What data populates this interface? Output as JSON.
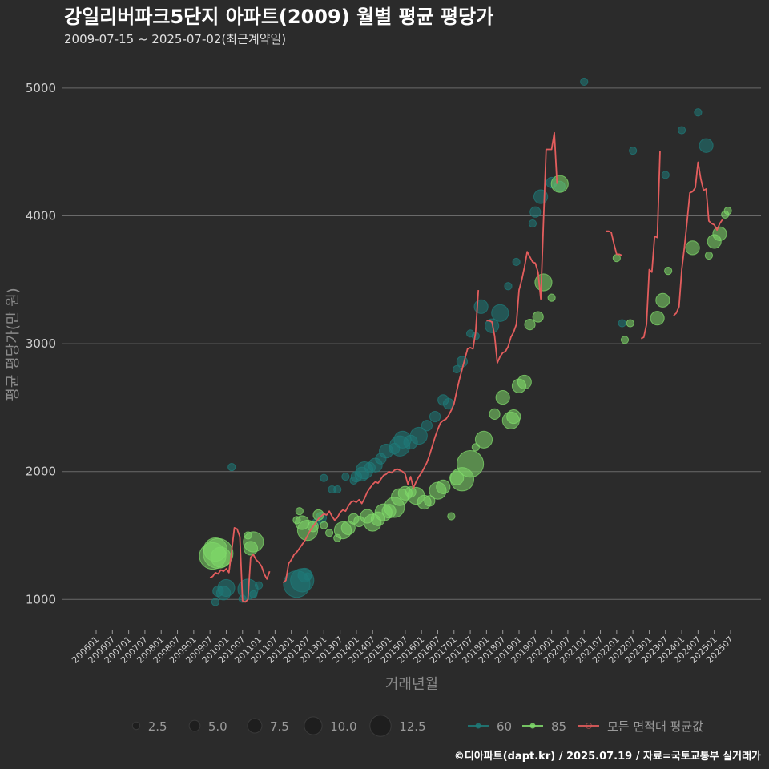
{
  "chart_data": {
    "type": "scatter",
    "title": "강일리버파크5단지 아파트(2009) 월별 평균 평당가",
    "subtitle": "2009-07-15 ~ 2025-07-02(최근계약일)",
    "xlabel": "거래년월",
    "ylabel": "평균 평당가(만 원)",
    "ylim": [
      770,
      5250
    ],
    "yticks": [
      1000,
      2000,
      3000,
      4000,
      5000
    ],
    "xticks": [
      "200601",
      "200607",
      "200701",
      "200707",
      "200801",
      "200807",
      "200901",
      "200907",
      "201001",
      "201007",
      "201101",
      "201107",
      "201201",
      "201207",
      "201301",
      "201307",
      "201401",
      "201407",
      "201501",
      "201507",
      "201601",
      "201607",
      "201701",
      "201707",
      "201801",
      "201807",
      "201901",
      "201907",
      "202001",
      "202007",
      "202101",
      "202107",
      "202201",
      "202207",
      "202301",
      "202307",
      "202401",
      "202407",
      "202501",
      "202507"
    ],
    "xrange_months": [
      "2006-01",
      "2025-07"
    ],
    "colors": {
      "s60": "#1f7a78",
      "s85": "#7fd86a",
      "avg": "#e35d5d",
      "grid": "#6a6a6a"
    },
    "size_legend": {
      "values": [
        "2.5",
        "5.0",
        "7.5",
        "10.0",
        "12.5"
      ],
      "numeric": [
        2.5,
        5.0,
        7.5,
        10.0,
        12.5
      ]
    },
    "series_legend": [
      {
        "name": "60",
        "key": "s60"
      },
      {
        "name": "85",
        "key": "s85"
      },
      {
        "name": "모든 면적대 평균값",
        "key": "avg"
      }
    ],
    "points_60": [
      [
        "2009-09",
        980,
        1
      ],
      [
        "2009-10",
        1065,
        2
      ],
      [
        "2009-12",
        1050,
        3
      ],
      [
        "2010-01",
        1090,
        4
      ],
      [
        "2010-03",
        2035,
        1
      ],
      [
        "2010-07",
        1005,
        1
      ],
      [
        "2010-09",
        1080,
        5
      ],
      [
        "2010-11",
        1040,
        1
      ],
      [
        "2011-01",
        1110,
        1
      ],
      [
        "2012-03",
        1120,
        7
      ],
      [
        "2012-05",
        1150,
        6
      ],
      [
        "2012-06",
        1190,
        3
      ],
      [
        "2012-07",
        1180,
        1
      ],
      [
        "2012-10",
        1600,
        1
      ],
      [
        "2012-12",
        1640,
        2
      ],
      [
        "2013-01",
        1950,
        1
      ],
      [
        "2013-04",
        1860,
        1
      ],
      [
        "2013-06",
        1860,
        1
      ],
      [
        "2013-09",
        1960,
        1
      ],
      [
        "2013-12",
        1930,
        1
      ],
      [
        "2014-01",
        1960,
        2
      ],
      [
        "2014-03",
        1980,
        3
      ],
      [
        "2014-04",
        2010,
        4
      ],
      [
        "2014-06",
        2030,
        2
      ],
      [
        "2014-08",
        2050,
        3
      ],
      [
        "2014-10",
        2100,
        2
      ],
      [
        "2014-12",
        2160,
        3
      ],
      [
        "2015-03",
        2180,
        2
      ],
      [
        "2015-05",
        2200,
        5
      ],
      [
        "2015-06",
        2250,
        4
      ],
      [
        "2015-09",
        2230,
        3
      ],
      [
        "2015-12",
        2280,
        4
      ],
      [
        "2016-03",
        2360,
        2
      ],
      [
        "2016-06",
        2430,
        2
      ],
      [
        "2016-09",
        2560,
        2
      ],
      [
        "2016-11",
        2530,
        2
      ],
      [
        "2017-02",
        2800,
        1
      ],
      [
        "2017-04",
        2860,
        2
      ],
      [
        "2017-07",
        3080,
        1
      ],
      [
        "2017-09",
        3060,
        1
      ],
      [
        "2017-11",
        3290,
        3
      ],
      [
        "2018-03",
        3140,
        3
      ],
      [
        "2018-06",
        3240,
        4
      ],
      [
        "2018-09",
        3450,
        1
      ],
      [
        "2018-12",
        3640,
        1
      ],
      [
        "2019-06",
        3940,
        1
      ],
      [
        "2019-07",
        4030,
        2
      ],
      [
        "2019-09",
        4150,
        3
      ],
      [
        "2020-01",
        4260,
        2
      ],
      [
        "2020-04",
        4230,
        2
      ],
      [
        "2021-01",
        5050,
        1
      ],
      [
        "2022-03",
        3160,
        1
      ],
      [
        "2022-07",
        4510,
        1
      ],
      [
        "2023-07",
        4320,
        1
      ],
      [
        "2024-01",
        4670,
        1
      ],
      [
        "2024-07",
        4810,
        1
      ],
      [
        "2024-10",
        4550,
        3
      ]
    ],
    "points_85": [
      [
        "2009-08",
        1340,
        7
      ],
      [
        "2009-09",
        1390,
        6
      ],
      [
        "2009-10",
        1360,
        8
      ],
      [
        "2009-11",
        1330,
        5
      ],
      [
        "2010-10",
        1400,
        3
      ],
      [
        "2010-11",
        1450,
        5
      ],
      [
        "2010-09",
        1500,
        1
      ],
      [
        "2012-03",
        1620,
        1
      ],
      [
        "2012-04",
        1690,
        1
      ],
      [
        "2012-05",
        1600,
        3
      ],
      [
        "2012-07",
        1540,
        5
      ],
      [
        "2012-09",
        1570,
        2
      ],
      [
        "2012-11",
        1660,
        2
      ],
      [
        "2013-01",
        1580,
        1
      ],
      [
        "2013-03",
        1520,
        1
      ],
      [
        "2013-06",
        1480,
        1
      ],
      [
        "2013-08",
        1540,
        4
      ],
      [
        "2013-10",
        1560,
        3
      ],
      [
        "2013-12",
        1630,
        2
      ],
      [
        "2014-02",
        1610,
        2
      ],
      [
        "2014-05",
        1650,
        3
      ],
      [
        "2014-07",
        1600,
        4
      ],
      [
        "2014-09",
        1630,
        3
      ],
      [
        "2014-11",
        1680,
        4
      ],
      [
        "2015-01",
        1690,
        3
      ],
      [
        "2015-03",
        1720,
        5
      ],
      [
        "2015-05",
        1800,
        4
      ],
      [
        "2015-07",
        1830,
        3
      ],
      [
        "2015-09",
        1840,
        2
      ],
      [
        "2015-11",
        1810,
        4
      ],
      [
        "2016-02",
        1760,
        3
      ],
      [
        "2016-04",
        1770,
        2
      ],
      [
        "2016-07",
        1850,
        4
      ],
      [
        "2016-09",
        1880,
        3
      ],
      [
        "2016-12",
        1650,
        1
      ],
      [
        "2017-02",
        1950,
        3
      ],
      [
        "2017-04",
        1940,
        6
      ],
      [
        "2017-07",
        2060,
        7
      ],
      [
        "2017-09",
        2190,
        1
      ],
      [
        "2017-12",
        2250,
        4
      ],
      [
        "2018-04",
        2450,
        2
      ],
      [
        "2018-07",
        2580,
        3
      ],
      [
        "2018-10",
        2400,
        4
      ],
      [
        "2018-11",
        2430,
        3
      ],
      [
        "2019-01",
        2670,
        3
      ],
      [
        "2019-03",
        2700,
        3
      ],
      [
        "2019-05",
        3150,
        2
      ],
      [
        "2019-08",
        3210,
        2
      ],
      [
        "2019-10",
        3480,
        4
      ],
      [
        "2020-01",
        3360,
        1
      ],
      [
        "2020-04",
        4250,
        4
      ],
      [
        "2022-01",
        3670,
        1
      ],
      [
        "2022-04",
        3030,
        1
      ],
      [
        "2022-06",
        3160,
        1
      ],
      [
        "2023-04",
        3200,
        3
      ],
      [
        "2023-06",
        3340,
        3
      ],
      [
        "2023-08",
        3570,
        1
      ],
      [
        "2024-05",
        3750,
        3
      ],
      [
        "2024-11",
        3690,
        1
      ],
      [
        "2025-01",
        3800,
        3
      ],
      [
        "2025-03",
        3860,
        3
      ],
      [
        "2025-05",
        4010,
        1
      ],
      [
        "2025-06",
        4040,
        1
      ]
    ],
    "avg_segments": [
      [
        [
          "2009-07",
          1170
        ],
        [
          "2009-08",
          1180
        ],
        [
          "2009-09",
          1210
        ],
        [
          "2009-10",
          1200
        ],
        [
          "2009-11",
          1230
        ],
        [
          "2009-12",
          1220
        ],
        [
          "2010-01",
          1240
        ],
        [
          "2010-02",
          1210
        ],
        [
          "2010-03",
          1380
        ],
        [
          "2010-04",
          1560
        ],
        [
          "2010-05",
          1550
        ],
        [
          "2010-06",
          1490
        ],
        [
          "2010-07",
          990
        ],
        [
          "2010-08",
          980
        ],
        [
          "2010-09",
          1000
        ],
        [
          "2010-10",
          1330
        ],
        [
          "2010-11",
          1350
        ],
        [
          "2010-12",
          1310
        ],
        [
          "2011-01",
          1290
        ],
        [
          "2011-02",
          1260
        ],
        [
          "2011-03",
          1200
        ],
        [
          "2011-04",
          1160
        ],
        [
          "2011-05",
          1220
        ]
      ],
      [
        [
          "2011-10",
          1130
        ],
        [
          "2011-11",
          1150
        ],
        [
          "2011-12",
          1280
        ],
        [
          "2012-01",
          1310
        ],
        [
          "2012-02",
          1350
        ],
        [
          "2012-03",
          1370
        ],
        [
          "2012-04",
          1400
        ],
        [
          "2012-05",
          1430
        ],
        [
          "2012-06",
          1460
        ],
        [
          "2012-07",
          1500
        ],
        [
          "2012-08",
          1540
        ],
        [
          "2012-09",
          1570
        ],
        [
          "2012-10",
          1600
        ],
        [
          "2012-11",
          1630
        ],
        [
          "2012-12",
          1650
        ],
        [
          "2013-01",
          1670
        ],
        [
          "2013-02",
          1660
        ],
        [
          "2013-03",
          1690
        ],
        [
          "2013-04",
          1650
        ],
        [
          "2013-05",
          1620
        ],
        [
          "2013-06",
          1640
        ],
        [
          "2013-07",
          1680
        ],
        [
          "2013-08",
          1700
        ],
        [
          "2013-09",
          1690
        ],
        [
          "2013-10",
          1730
        ],
        [
          "2013-11",
          1760
        ],
        [
          "2013-12",
          1770
        ],
        [
          "2014-01",
          1760
        ],
        [
          "2014-02",
          1780
        ],
        [
          "2014-03",
          1750
        ],
        [
          "2014-04",
          1790
        ],
        [
          "2014-05",
          1840
        ],
        [
          "2014-06",
          1870
        ],
        [
          "2014-07",
          1900
        ],
        [
          "2014-08",
          1920
        ],
        [
          "2014-09",
          1910
        ],
        [
          "2014-10",
          1940
        ],
        [
          "2014-11",
          1970
        ],
        [
          "2014-12",
          1980
        ],
        [
          "2015-01",
          2000
        ],
        [
          "2015-02",
          1990
        ],
        [
          "2015-03",
          2010
        ],
        [
          "2015-04",
          2020
        ],
        [
          "2015-05",
          2010
        ],
        [
          "2015-06",
          2000
        ],
        [
          "2015-07",
          1980
        ],
        [
          "2015-08",
          1900
        ],
        [
          "2015-09",
          1960
        ],
        [
          "2015-10",
          1870
        ],
        [
          "2015-11",
          1920
        ],
        [
          "2015-12",
          1960
        ],
        [
          "2016-01",
          1990
        ],
        [
          "2016-02",
          2030
        ],
        [
          "2016-03",
          2070
        ],
        [
          "2016-04",
          2130
        ],
        [
          "2016-05",
          2200
        ],
        [
          "2016-06",
          2270
        ],
        [
          "2016-07",
          2330
        ],
        [
          "2016-08",
          2380
        ],
        [
          "2016-09",
          2400
        ],
        [
          "2016-10",
          2410
        ],
        [
          "2016-11",
          2440
        ],
        [
          "2016-12",
          2480
        ],
        [
          "2017-01",
          2530
        ],
        [
          "2017-02",
          2630
        ],
        [
          "2017-03",
          2720
        ],
        [
          "2017-04",
          2800
        ],
        [
          "2017-05",
          2880
        ],
        [
          "2017-06",
          2960
        ],
        [
          "2017-07",
          2970
        ],
        [
          "2017-08",
          2960
        ],
        [
          "2017-09",
          3090
        ],
        [
          "2017-10",
          3420
        ]
      ],
      [
        [
          "2018-01",
          3180
        ],
        [
          "2018-02",
          3180
        ],
        [
          "2018-03",
          3170
        ],
        [
          "2018-04",
          3060
        ],
        [
          "2018-05",
          2850
        ],
        [
          "2018-06",
          2900
        ],
        [
          "2018-07",
          2930
        ],
        [
          "2018-08",
          2940
        ],
        [
          "2018-09",
          2980
        ],
        [
          "2018-10",
          3050
        ],
        [
          "2018-11",
          3090
        ],
        [
          "2018-12",
          3150
        ],
        [
          "2019-01",
          3420
        ],
        [
          "2019-02",
          3500
        ],
        [
          "2019-03",
          3600
        ],
        [
          "2019-04",
          3720
        ],
        [
          "2019-05",
          3680
        ],
        [
          "2019-06",
          3640
        ],
        [
          "2019-07",
          3630
        ],
        [
          "2019-08",
          3560
        ],
        [
          "2019-09",
          3350
        ],
        [
          "2019-10",
          3960
        ],
        [
          "2019-11",
          4520
        ],
        [
          "2019-12",
          4520
        ],
        [
          "2020-01",
          4520
        ],
        [
          "2020-02",
          4650
        ],
        [
          "2020-03",
          4250
        ]
      ],
      [
        [
          "2021-09",
          3880
        ],
        [
          "2021-10",
          3880
        ],
        [
          "2021-11",
          3870
        ],
        [
          "2021-12",
          3780
        ],
        [
          "2022-01",
          3700
        ],
        [
          "2022-02",
          3700
        ],
        [
          "2022-03",
          3690
        ]
      ],
      [
        [
          "2022-10",
          3040
        ],
        [
          "2022-11",
          3050
        ],
        [
          "2022-12",
          3150
        ],
        [
          "2023-01",
          3580
        ],
        [
          "2023-02",
          3560
        ],
        [
          "2023-03",
          3840
        ],
        [
          "2023-04",
          3830
        ],
        [
          "2023-05",
          4510
        ]
      ],
      [
        [
          "2023-10",
          3220
        ],
        [
          "2023-11",
          3240
        ],
        [
          "2023-12",
          3290
        ],
        [
          "2024-01",
          3580
        ],
        [
          "2024-02",
          3760
        ],
        [
          "2024-03",
          3960
        ],
        [
          "2024-04",
          4180
        ],
        [
          "2024-05",
          4190
        ],
        [
          "2024-06",
          4220
        ],
        [
          "2024-07",
          4420
        ],
        [
          "2024-08",
          4290
        ],
        [
          "2024-09",
          4200
        ],
        [
          "2024-10",
          4210
        ],
        [
          "2024-11",
          3960
        ],
        [
          "2024-12",
          3940
        ],
        [
          "2025-01",
          3930
        ],
        [
          "2025-02",
          3890
        ],
        [
          "2025-03",
          3940
        ],
        [
          "2025-04",
          3970
        ]
      ]
    ]
  },
  "caption": "©디아파트(dapt.kr) / 2025.07.19 / 자료=국토교통부 실거래가"
}
